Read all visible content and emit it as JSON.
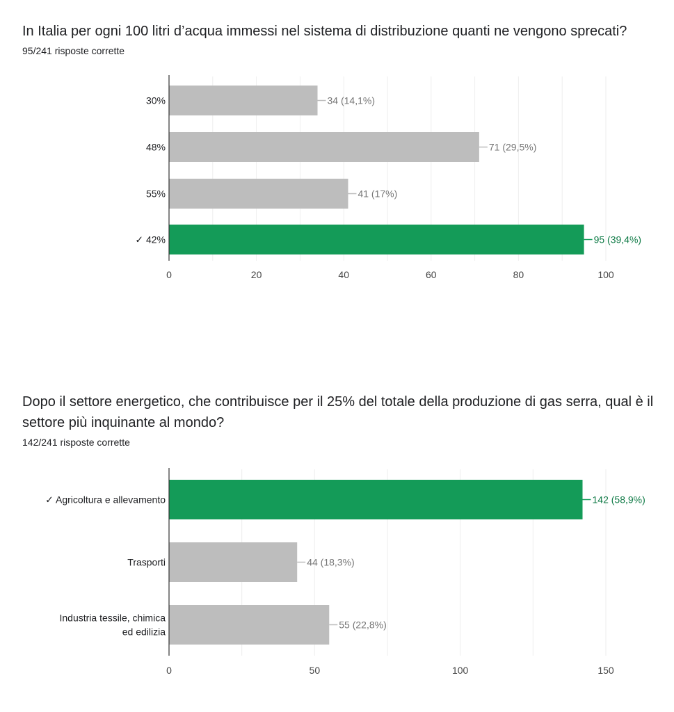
{
  "questions": [
    {
      "title": "In Italia per ogni 100 litri d’acqua immessi nel sistema di distribuzione quanti ne vengono sprecati?",
      "subtitle": "95/241 risposte corrette"
    },
    {
      "title": "Dopo il settore energetico, che contribuisce per il 25% del totale della produzione di gas serra, qual è il settore più inquinante al mondo?",
      "subtitle": "142/241 risposte corrette"
    }
  ],
  "colors": {
    "correct": "#149B58",
    "incorrect": "#BDBDBD",
    "label_incorrect": "#757575",
    "label_correct": "#0F7A46",
    "grid": "#EEEEEE",
    "axis": "#333333"
  },
  "chart_data": [
    {
      "type": "bar",
      "orientation": "horizontal",
      "categories": [
        "30%",
        "48%",
        "55%",
        "✓ 42%"
      ],
      "values": [
        34,
        71,
        41,
        95
      ],
      "data_labels": [
        "34 (14,1%)",
        "71 (29,5%)",
        "41 (17%)",
        "95 (39,4%)"
      ],
      "correct": [
        false,
        false,
        false,
        true
      ],
      "xlim": [
        0,
        100
      ],
      "ticks": [
        0,
        20,
        40,
        60,
        80,
        100
      ],
      "grid": true
    },
    {
      "type": "bar",
      "orientation": "horizontal",
      "categories": [
        "✓ Agricoltura e allevamento",
        "Trasporti",
        "Industria tessile, chimica ed edilizia"
      ],
      "values": [
        142,
        44,
        55
      ],
      "data_labels": [
        "142 (58,9%)",
        "44 (18,3%)",
        "55 (22,8%)"
      ],
      "correct": [
        true,
        false,
        false
      ],
      "xlim": [
        0,
        150
      ],
      "ticks": [
        0,
        50,
        100,
        150
      ],
      "grid": true
    }
  ]
}
